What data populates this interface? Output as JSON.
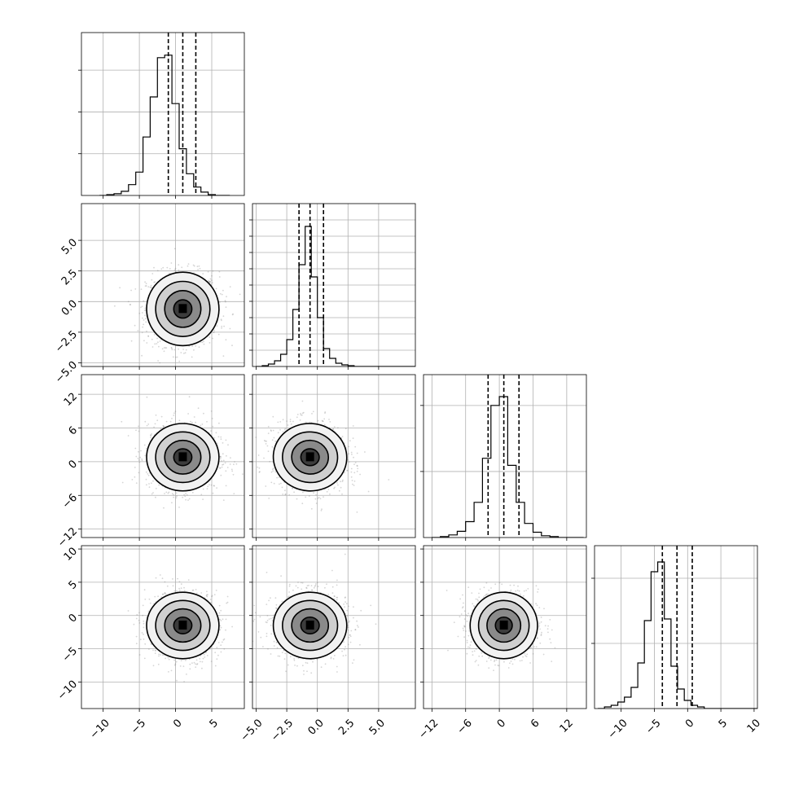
{
  "chart_data": {
    "type": "corner",
    "n_params": 4,
    "grid": true,
    "params": [
      {
        "index": 0,
        "range": [
          -13,
          9.5
        ],
        "ticks": [
          -10,
          -5,
          0,
          5
        ],
        "tick_labels": [
          "−10",
          "−5",
          "0",
          "5"
        ],
        "mean": 1.0,
        "quantiles": [
          -1.0,
          1.0,
          2.8
        ]
      },
      {
        "index": 1,
        "range": [
          -5.3,
          8.0
        ],
        "ticks": [
          -5.0,
          -2.5,
          0.0,
          2.5,
          5.0
        ],
        "tick_labels": [
          "−5.0",
          "−2.5",
          "0.0",
          "2.5",
          "5.0"
        ],
        "mean": -0.6,
        "quantiles": [
          -1.5,
          -0.6,
          0.5
        ]
      },
      {
        "index": 2,
        "range": [
          -13.5,
          15.5
        ],
        "ticks": [
          -12,
          -6,
          0,
          6,
          12
        ],
        "tick_labels": [
          "−12",
          "−6",
          "0",
          "6",
          "12"
        ],
        "mean": 0.8,
        "quantiles": [
          -2.0,
          0.8,
          3.5
        ]
      },
      {
        "index": 3,
        "range": [
          -14,
          10.5
        ],
        "ticks": [
          -10,
          -5,
          0,
          5,
          10
        ],
        "tick_labels": [
          "−10",
          "−5",
          "0",
          "5",
          "10"
        ],
        "mean": -1.5,
        "quantiles": [
          -3.8,
          -1.6,
          0.7
        ]
      }
    ],
    "histograms": [
      {
        "param": 0,
        "bins_start": -10.5,
        "bin_width": 1.0,
        "counts": [
          0,
          1,
          2,
          5,
          13,
          28,
          70,
          118,
          165,
          168,
          110,
          56,
          26,
          10,
          4,
          1,
          0,
          0
        ],
        "ylim": [
          0,
          195
        ],
        "ytick_values": [
          50,
          100,
          150
        ]
      },
      {
        "param": 1,
        "bins_start": -5.0,
        "bin_width": 0.5,
        "counts": [
          0,
          1,
          3,
          7,
          15,
          33,
          70,
          125,
          172,
          110,
          60,
          22,
          10,
          4,
          2,
          1,
          0,
          0,
          0,
          0,
          0,
          0,
          0,
          0,
          0,
          0
        ],
        "ylim": [
          0,
          200
        ],
        "ytick_values": [
          20,
          40,
          60,
          80,
          100,
          120,
          140,
          160,
          180
        ]
      },
      {
        "param": 2,
        "bins_start": -12.0,
        "bin_width": 1.5,
        "counts": [
          0,
          1,
          3,
          7,
          18,
          40,
          90,
          150,
          160,
          82,
          40,
          16,
          6,
          2,
          1,
          0,
          0,
          0
        ],
        "ylim": [
          0,
          185
        ],
        "ytick_values": [
          75,
          150
        ]
      },
      {
        "param": 3,
        "bins_start": -13.5,
        "bin_width": 1.0,
        "counts": [
          0,
          1,
          2,
          4,
          7,
          13,
          28,
          54,
          84,
          90,
          55,
          26,
          12,
          5,
          2,
          1,
          0,
          0,
          0,
          0,
          0,
          0,
          0,
          0
        ],
        "ylim": [
          0,
          100
        ],
        "ytick_values": [
          40,
          80
        ]
      }
    ],
    "pairs": [
      {
        "x_param": 0,
        "y_param": 1,
        "sx": 2.5,
        "sy": 1.5,
        "rho": 0.0
      },
      {
        "x_param": 0,
        "y_param": 2,
        "sx": 2.5,
        "sy": 3.0,
        "rho": 0.0
      },
      {
        "x_param": 1,
        "y_param": 2,
        "sx": 1.5,
        "sy": 3.0,
        "rho": -0.1
      },
      {
        "x_param": 0,
        "y_param": 3,
        "sx": 2.5,
        "sy": 2.5,
        "rho": 0.0
      },
      {
        "x_param": 1,
        "y_param": 3,
        "sx": 1.5,
        "sy": 2.5,
        "rho": 0.0
      },
      {
        "x_param": 2,
        "y_param": 3,
        "sx": 3.0,
        "sy": 2.5,
        "rho": 0.0
      }
    ],
    "contour_sigmas": [
      0.5,
      1.0,
      1.5,
      2.0
    ],
    "colors": {
      "axes": "#000000",
      "grid": "#b0b0b0",
      "points": "#888888",
      "contour": "#000000"
    }
  }
}
